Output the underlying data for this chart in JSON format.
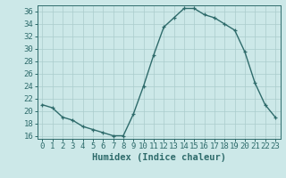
{
  "x": [
    0,
    1,
    2,
    3,
    4,
    5,
    6,
    7,
    8,
    9,
    10,
    11,
    12,
    13,
    14,
    15,
    16,
    17,
    18,
    19,
    20,
    21,
    22,
    23
  ],
  "y": [
    21,
    20.5,
    19,
    18.5,
    17.5,
    17,
    16.5,
    16,
    16,
    19.5,
    24,
    29,
    33.5,
    35,
    36.5,
    36.5,
    35.5,
    35,
    34,
    33,
    29.5,
    24.5,
    21,
    19
  ],
  "line_color": "#2e6b6b",
  "marker": "+",
  "marker_color": "#2e6b6b",
  "bg_color": "#cce8e8",
  "grid_color": "#aacccc",
  "xlabel": "Humidex (Indice chaleur)",
  "xlim": [
    -0.5,
    23.5
  ],
  "ylim": [
    15.5,
    37
  ],
  "yticks": [
    16,
    18,
    20,
    22,
    24,
    26,
    28,
    30,
    32,
    34,
    36
  ],
  "xticks": [
    0,
    1,
    2,
    3,
    4,
    5,
    6,
    7,
    8,
    9,
    10,
    11,
    12,
    13,
    14,
    15,
    16,
    17,
    18,
    19,
    20,
    21,
    22,
    23
  ],
  "tick_color": "#2e6b6b",
  "label_fontsize": 6.5,
  "xlabel_fontsize": 7.5,
  "marker_size": 3.5,
  "line_width": 1.0
}
